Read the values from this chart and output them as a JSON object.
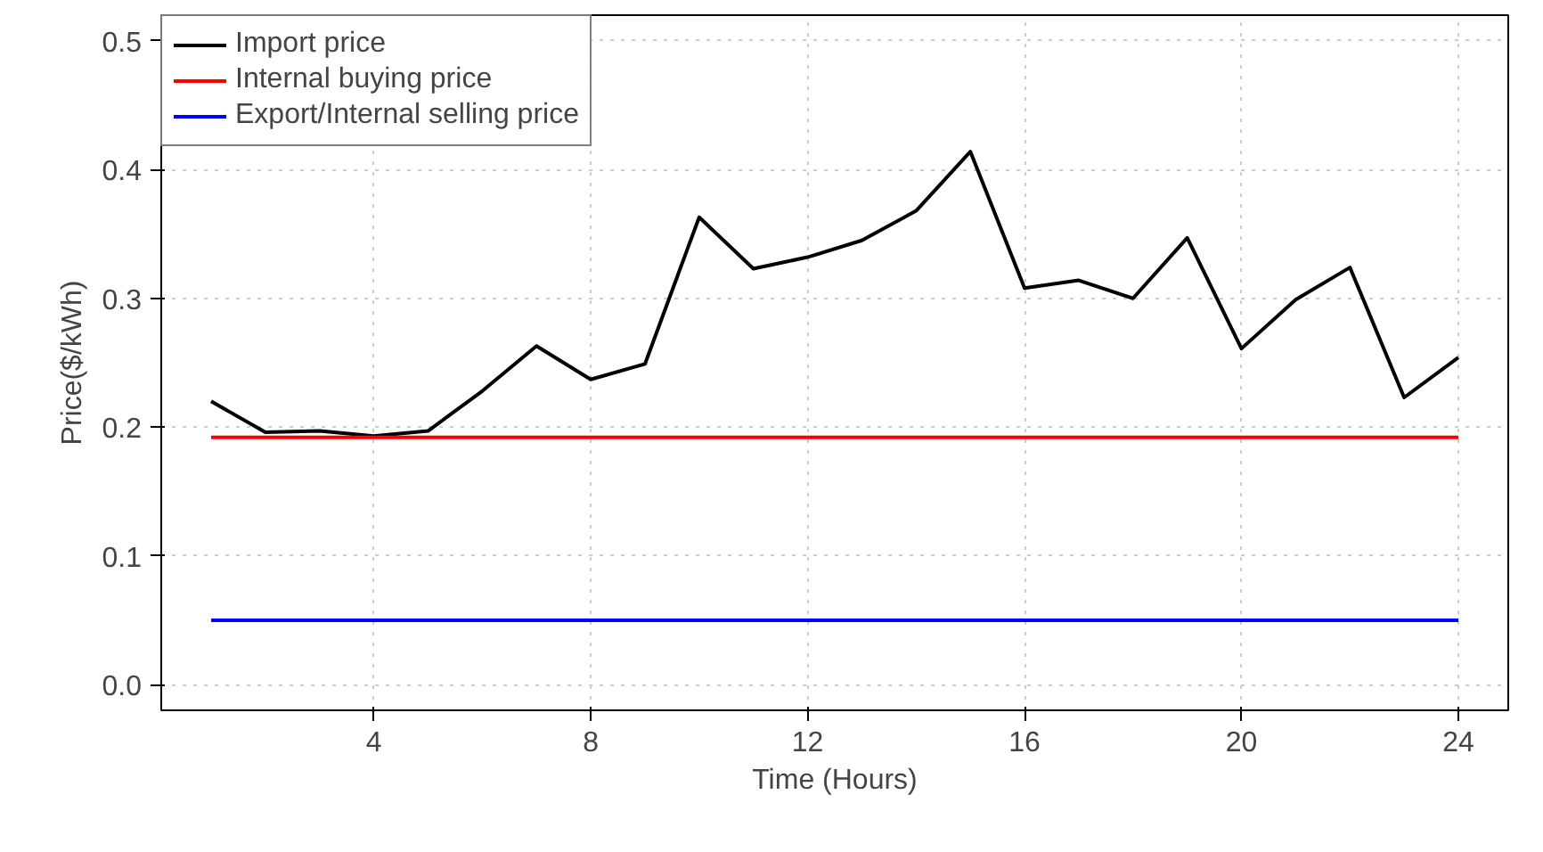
{
  "chart_data": {
    "type": "line",
    "xlabel": "Time (Hours)",
    "ylabel": "Price($/kWh)",
    "x": [
      1,
      2,
      3,
      4,
      5,
      6,
      7,
      8,
      9,
      10,
      11,
      12,
      13,
      14,
      15,
      16,
      17,
      18,
      19,
      20,
      21,
      22,
      23,
      24
    ],
    "series": [
      {
        "name": "Import price",
        "color": "#000000",
        "values": [
          0.22,
          0.196,
          0.197,
          0.193,
          0.197,
          0.228,
          0.263,
          0.237,
          0.249,
          0.363,
          0.323,
          0.332,
          0.345,
          0.368,
          0.414,
          0.308,
          0.314,
          0.3,
          0.347,
          0.261,
          0.299,
          0.324,
          0.223,
          0.254
        ]
      },
      {
        "name": "Internal buying price",
        "color": "#ff0000",
        "values": [
          0.192,
          0.192,
          0.192,
          0.192,
          0.192,
          0.192,
          0.192,
          0.192,
          0.192,
          0.192,
          0.192,
          0.192,
          0.192,
          0.192,
          0.192,
          0.192,
          0.192,
          0.192,
          0.192,
          0.192,
          0.192,
          0.192,
          0.192,
          0.192
        ]
      },
      {
        "name": "Export/Internal selling price",
        "color": "#0000ff",
        "values": [
          0.05,
          0.05,
          0.05,
          0.05,
          0.05,
          0.05,
          0.05,
          0.05,
          0.05,
          0.05,
          0.05,
          0.05,
          0.05,
          0.05,
          0.05,
          0.05,
          0.05,
          0.05,
          0.05,
          0.05,
          0.05,
          0.05,
          0.05,
          0.05
        ]
      }
    ],
    "xlim": [
      0.08,
      24.92
    ],
    "ylim": [
      -0.02,
      0.52
    ],
    "xticks": [
      4,
      8,
      12,
      16,
      20,
      24
    ],
    "yticks": [
      {
        "value": 0,
        "label": "0.0"
      },
      0.1,
      0.2,
      0.3,
      0.4,
      0.5
    ],
    "grid": true,
    "legend": "top left",
    "marker": "none",
    "line_style": "solid"
  }
}
